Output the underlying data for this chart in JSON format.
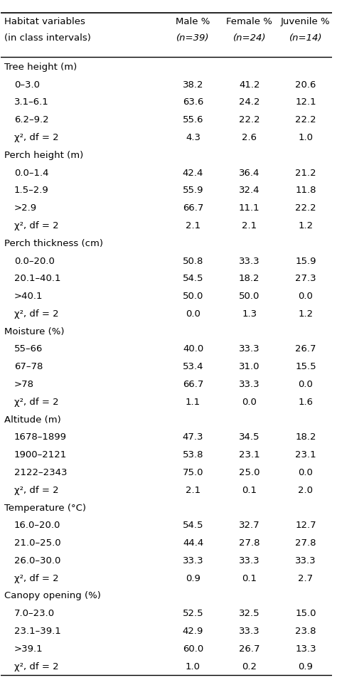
{
  "col_headers": [
    "Habitat variables\n(in class intervals)",
    "Male %\n(n=39)",
    "Female %\n(n=24)",
    "Juvenile %\n(n=14)"
  ],
  "rows": [
    {
      "label": "Tree height (m)",
      "type": "section",
      "values": [
        "",
        "",
        ""
      ]
    },
    {
      "label": "  0–3.0",
      "type": "data",
      "values": [
        "38.2",
        "41.2",
        "20.6"
      ]
    },
    {
      "label": "  3.1–6.1",
      "type": "data",
      "values": [
        "63.6",
        "24.2",
        "12.1"
      ]
    },
    {
      "label": "  6.2–9.2",
      "type": "data",
      "values": [
        "55.6",
        "22.2",
        "22.2"
      ]
    },
    {
      "label": "  χ², df = 2",
      "type": "chi",
      "values": [
        "4.3",
        "2.6",
        "1.0"
      ]
    },
    {
      "label": "Perch height (m)",
      "type": "section",
      "values": [
        "",
        "",
        ""
      ]
    },
    {
      "label": "  0.0–1.4",
      "type": "data",
      "values": [
        "42.4",
        "36.4",
        "21.2"
      ]
    },
    {
      "label": "  1.5–2.9",
      "type": "data",
      "values": [
        "55.9",
        "32.4",
        "11.8"
      ]
    },
    {
      "label": "  >2.9",
      "type": "data",
      "values": [
        "66.7",
        "11.1",
        "22.2"
      ]
    },
    {
      "label": "  χ², df = 2",
      "type": "chi",
      "values": [
        "2.1",
        "2.1",
        "1.2"
      ]
    },
    {
      "label": "Perch thickness (cm)",
      "type": "section",
      "values": [
        "",
        "",
        ""
      ]
    },
    {
      "label": "  0.0–20.0",
      "type": "data",
      "values": [
        "50.8",
        "33.3",
        "15.9"
      ]
    },
    {
      "label": "  20.1–40.1",
      "type": "data",
      "values": [
        "54.5",
        "18.2",
        "27.3"
      ]
    },
    {
      "label": "  >40.1",
      "type": "data",
      "values": [
        "50.0",
        "50.0",
        "0.0"
      ]
    },
    {
      "label": "  χ², df = 2",
      "type": "chi",
      "values": [
        "0.0",
        "1.3",
        "1.2"
      ]
    },
    {
      "label": "Moisture (%)",
      "type": "section",
      "values": [
        "",
        "",
        ""
      ]
    },
    {
      "label": "  55–66",
      "type": "data",
      "values": [
        "40.0",
        "33.3",
        "26.7"
      ]
    },
    {
      "label": "  67–78",
      "type": "data",
      "values": [
        "53.4",
        "31.0",
        "15.5"
      ]
    },
    {
      "label": "  >78",
      "type": "data",
      "values": [
        "66.7",
        "33.3",
        "0.0"
      ]
    },
    {
      "label": "  χ², df = 2",
      "type": "chi",
      "values": [
        "1.1",
        "0.0",
        "1.6"
      ]
    },
    {
      "label": "Altitude (m)",
      "type": "section",
      "values": [
        "",
        "",
        ""
      ]
    },
    {
      "label": "  1678–1899",
      "type": "data",
      "values": [
        "47.3",
        "34.5",
        "18.2"
      ]
    },
    {
      "label": "  1900–2121",
      "type": "data",
      "values": [
        "53.8",
        "23.1",
        "23.1"
      ]
    },
    {
      "label": "  2122–2343",
      "type": "data",
      "values": [
        "75.0",
        "25.0",
        "0.0"
      ]
    },
    {
      "label": "  χ², df = 2",
      "type": "chi",
      "values": [
        "2.1",
        "0.1",
        "2.0"
      ]
    },
    {
      "label": "Temperature (°C)",
      "type": "section",
      "values": [
        "",
        "",
        ""
      ]
    },
    {
      "label": "  16.0–20.0",
      "type": "data",
      "values": [
        "54.5",
        "32.7",
        "12.7"
      ]
    },
    {
      "label": "  21.0–25.0",
      "type": "data",
      "values": [
        "44.4",
        "27.8",
        "27.8"
      ]
    },
    {
      "label": "  26.0–30.0",
      "type": "data",
      "values": [
        "33.3",
        "33.3",
        "33.3"
      ]
    },
    {
      "label": "  χ², df = 2",
      "type": "chi",
      "values": [
        "0.9",
        "0.1",
        "2.7"
      ]
    },
    {
      "label": "Canopy opening (%)",
      "type": "section",
      "values": [
        "",
        "",
        ""
      ]
    },
    {
      "label": "  7.0–23.0",
      "type": "data",
      "values": [
        "52.5",
        "32.5",
        "15.0"
      ]
    },
    {
      "label": "  23.1–39.1",
      "type": "data",
      "values": [
        "42.9",
        "33.3",
        "23.8"
      ]
    },
    {
      "label": "  >39.1",
      "type": "data",
      "values": [
        "60.0",
        "26.7",
        "13.3"
      ]
    },
    {
      "label": "  χ², df = 2",
      "type": "chi",
      "values": [
        "1.0",
        "0.2",
        "0.9"
      ]
    }
  ],
  "bg_color": "#ffffff",
  "text_color": "#000000",
  "font_size": 9.5,
  "header_font_size": 9.5
}
